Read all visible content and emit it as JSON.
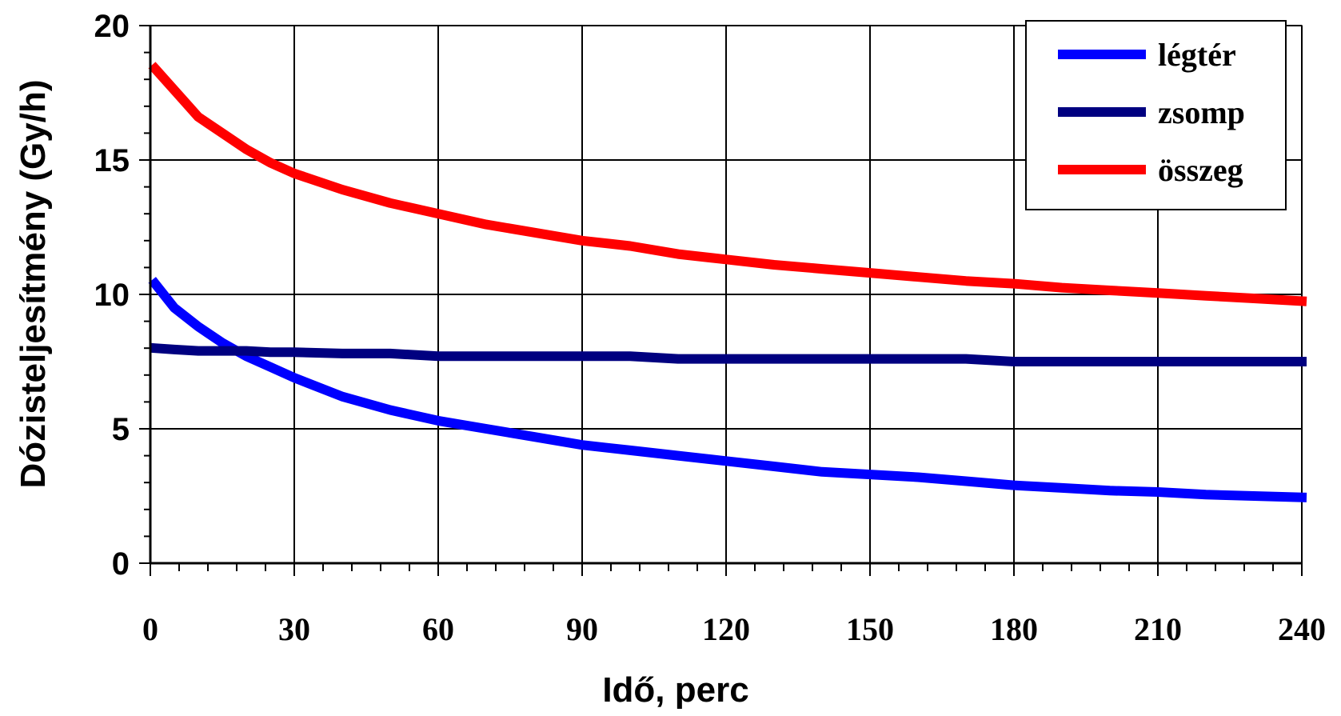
{
  "chart_data": {
    "type": "line",
    "xlabel": "Idő, perc",
    "ylabel": "Dózisteljesítmény (Gy/h)",
    "xlim": [
      0,
      240
    ],
    "ylim": [
      0,
      20
    ],
    "xticks": [
      "0",
      "30",
      "60",
      "90",
      "120",
      "150",
      "180",
      "210",
      "240"
    ],
    "yticks": [
      "0",
      "5",
      "10",
      "15",
      "20"
    ],
    "grid": true,
    "legend_position": "top-right",
    "x": [
      1,
      5,
      10,
      15,
      20,
      25,
      30,
      40,
      50,
      60,
      70,
      80,
      90,
      100,
      110,
      120,
      130,
      140,
      150,
      160,
      170,
      180,
      190,
      200,
      210,
      220,
      230,
      240
    ],
    "series": [
      {
        "name": "légtér",
        "color": "#0000ff",
        "values": [
          10.4,
          9.5,
          8.8,
          8.2,
          7.7,
          7.3,
          6.9,
          6.2,
          5.7,
          5.3,
          5.0,
          4.7,
          4.4,
          4.2,
          4.0,
          3.8,
          3.6,
          3.4,
          3.3,
          3.2,
          3.05,
          2.9,
          2.8,
          2.7,
          2.65,
          2.55,
          2.5,
          2.45
        ]
      },
      {
        "name": "zsomp",
        "color": "#000080",
        "values": [
          8.0,
          7.95,
          7.9,
          7.9,
          7.9,
          7.85,
          7.85,
          7.8,
          7.8,
          7.7,
          7.7,
          7.7,
          7.7,
          7.7,
          7.6,
          7.6,
          7.6,
          7.6,
          7.6,
          7.6,
          7.6,
          7.5,
          7.5,
          7.5,
          7.5,
          7.5,
          7.5,
          7.5
        ]
      },
      {
        "name": "összeg",
        "color": "#ff0000",
        "values": [
          18.4,
          17.6,
          16.6,
          16.0,
          15.4,
          14.9,
          14.5,
          13.9,
          13.4,
          13.0,
          12.6,
          12.3,
          12.0,
          11.8,
          11.5,
          11.3,
          11.1,
          10.95,
          10.8,
          10.65,
          10.5,
          10.4,
          10.25,
          10.15,
          10.05,
          9.95,
          9.85,
          9.75
        ]
      }
    ]
  }
}
